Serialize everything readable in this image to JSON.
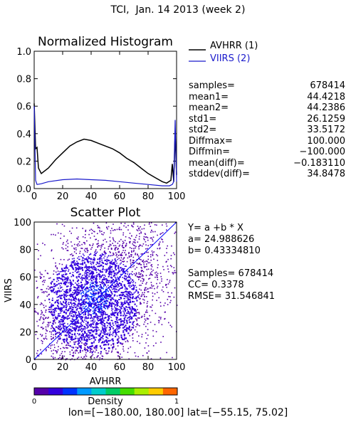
{
  "page_title": "TCI,  Jan. 14 2013 (week 2)",
  "histogram": {
    "title": "Normalized Histogram",
    "legend": [
      {
        "label": "AVHRR (1)",
        "color": "#000000"
      },
      {
        "label": "VIIRS (2)",
        "color": "#1a1acc"
      }
    ],
    "x_ticks": [
      "0",
      "20",
      "40",
      "60",
      "80",
      "100"
    ],
    "y_ticks": [
      "0.0",
      "0.2",
      "0.4",
      "0.6",
      "0.8",
      "1.0"
    ]
  },
  "stats": [
    {
      "label": "samples=",
      "value": "678414"
    },
    {
      "label": "mean1=",
      "value": "44.4218"
    },
    {
      "label": "mean2=",
      "value": "44.2386"
    },
    {
      "label": "std1=",
      "value": "26.1259"
    },
    {
      "label": "std2=",
      "value": "33.5172"
    },
    {
      "label": "Diffmax=",
      "value": "100.000"
    },
    {
      "label": "Diffmin=",
      "value": "−100.000"
    },
    {
      "label": "mean(diff)=",
      "value": "−0.183110"
    },
    {
      "label": "stddev(diff)=",
      "value": "34.8478"
    }
  ],
  "scatter": {
    "title": "Scatter Plot",
    "xlabel": "AVHRR",
    "ylabel": "VIIRS",
    "x_ticks": [
      "0",
      "20",
      "40",
      "60",
      "80",
      "100"
    ],
    "y_ticks": [
      "0",
      "20",
      "40",
      "60",
      "80",
      "100"
    ]
  },
  "regression": {
    "equation": "Y= a +b * X",
    "a": "a= 24.988626",
    "b": "b= 0.43334810",
    "samples": "Samples= 678414",
    "cc": "CC=  0.3378",
    "rmse": "RMSE= 31.546841"
  },
  "colorbar": {
    "label": "Density",
    "min_label": "0",
    "max_label": "1",
    "colors": [
      "#5500aa",
      "#3300dd",
      "#0033ff",
      "#0099ff",
      "#00cccc",
      "#00cc66",
      "#44dd00",
      "#aaee00",
      "#ffcc00",
      "#ff6600"
    ]
  },
  "footer": "lon=[−180.00, 180.00] lat=[−55.15, 75.02]",
  "chart_data": [
    {
      "type": "line",
      "title": "Normalized Histogram",
      "xlim": [
        0,
        100
      ],
      "ylim": [
        0,
        1.0
      ],
      "series": [
        {
          "name": "AVHRR (1)",
          "x": [
            0,
            1,
            2,
            3,
            5,
            10,
            15,
            20,
            25,
            30,
            35,
            40,
            45,
            50,
            55,
            60,
            65,
            70,
            75,
            80,
            85,
            90,
            93,
            96,
            97,
            98,
            99,
            100
          ],
          "y": [
            0.62,
            0.29,
            0.3,
            0.15,
            0.11,
            0.15,
            0.21,
            0.26,
            0.31,
            0.34,
            0.36,
            0.35,
            0.33,
            0.31,
            0.29,
            0.26,
            0.22,
            0.19,
            0.15,
            0.11,
            0.08,
            0.05,
            0.04,
            0.06,
            0.18,
            0.05,
            0.4,
            0.1
          ]
        },
        {
          "name": "VIIRS (2)",
          "x": [
            0,
            1,
            2,
            5,
            10,
            20,
            30,
            40,
            50,
            60,
            70,
            80,
            90,
            95,
            97,
            98,
            99,
            100
          ],
          "y": [
            0.6,
            0.06,
            0.03,
            0.035,
            0.05,
            0.065,
            0.07,
            0.065,
            0.06,
            0.05,
            0.04,
            0.03,
            0.02,
            0.02,
            0.03,
            0.05,
            0.5,
            0.05
          ]
        }
      ]
    },
    {
      "type": "scatter",
      "title": "Scatter Plot",
      "xlabel": "AVHRR",
      "ylabel": "VIIRS",
      "xlim": [
        0,
        100
      ],
      "ylim": [
        0,
        100
      ],
      "samples": 678414,
      "regression": {
        "a": 24.988626,
        "b": 0.4333481
      },
      "reference_line": {
        "x": [
          0,
          100
        ],
        "y": [
          0,
          100
        ],
        "color": "#0000ff"
      }
    }
  ]
}
